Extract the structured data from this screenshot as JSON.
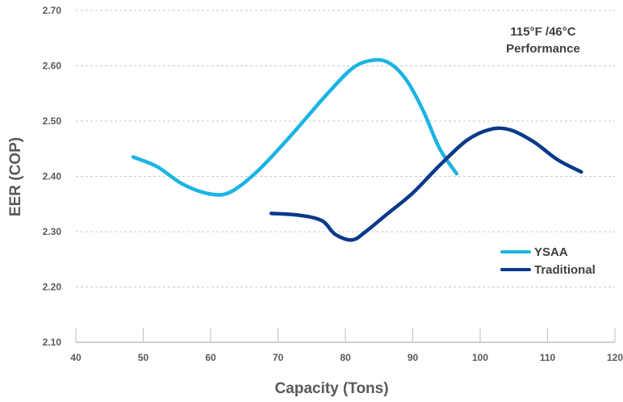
{
  "chart_data": {
    "type": "line",
    "title": "",
    "annotation": [
      "115°F /46°C",
      "Performance"
    ],
    "xlabel": "Capacity (Tons)",
    "ylabel": "EER (COP)",
    "xlim": [
      40,
      120
    ],
    "ylim": [
      2.1,
      2.7
    ],
    "xticks": [
      40,
      50,
      60,
      70,
      80,
      90,
      100,
      110,
      120
    ],
    "yticks": [
      "2.10",
      "2.20",
      "2.30",
      "2.40",
      "2.50",
      "2.60",
      "2.70"
    ],
    "grid": "horizontal dashed",
    "legend_position": "right",
    "series": [
      {
        "name": "YSAA",
        "color": "#1ab4e3",
        "x": [
          48.5,
          52,
          56,
          60,
          63,
          67,
          72,
          77,
          81,
          84,
          86.5,
          89,
          91.5,
          94,
          96.5
        ],
        "y": [
          2.435,
          2.418,
          2.385,
          2.368,
          2.372,
          2.41,
          2.475,
          2.545,
          2.595,
          2.61,
          2.605,
          2.575,
          2.52,
          2.45,
          2.405
        ]
      },
      {
        "name": "Traditional",
        "color": "#0a3a8a",
        "x": [
          69,
          73,
          76.5,
          78.5,
          81,
          83,
          86,
          90,
          94,
          98,
          101.5,
          104.5,
          108,
          111.5,
          115
        ],
        "y": [
          2.333,
          2.33,
          2.32,
          2.295,
          2.285,
          2.3,
          2.33,
          2.37,
          2.42,
          2.465,
          2.485,
          2.484,
          2.462,
          2.43,
          2.408
        ]
      }
    ]
  }
}
